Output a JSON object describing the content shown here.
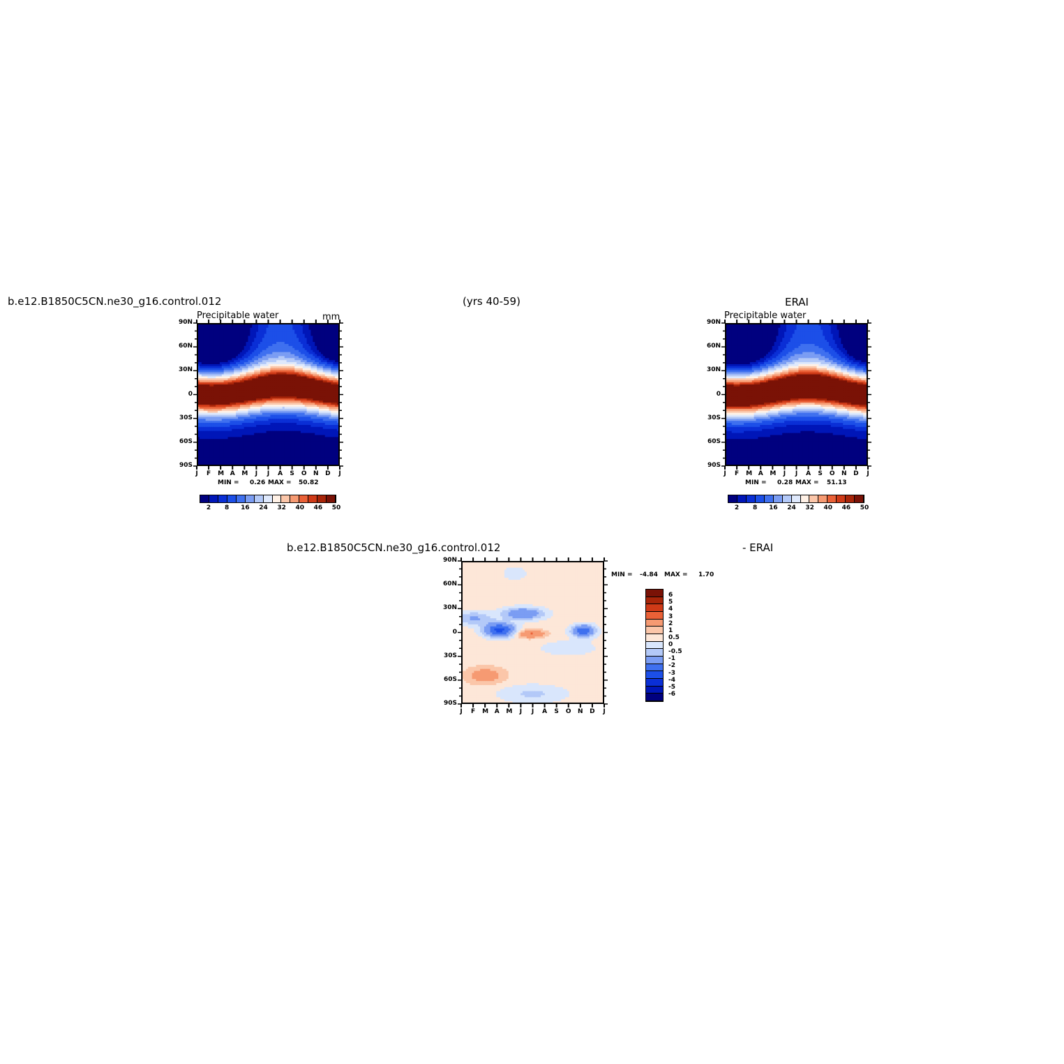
{
  "page": {
    "model_name": "b.e12.B1850C5CN.ne30_g16.control.012",
    "years": "(yrs 40-59)",
    "obs_name": "ERAI",
    "diff_title_left": "b.e12.B1850C5CN.ne30_g16.control.012",
    "diff_title_right": "- ERAI"
  },
  "colors": {
    "abs_levels": [
      "#00007f",
      "#0016b8",
      "#0a2fd6",
      "#1c4fe8",
      "#3f70ef",
      "#7b9df3",
      "#b3c9f8",
      "#dfe9fc",
      "#fff1e6",
      "#fbc6a9",
      "#f69a72",
      "#ea6137",
      "#cf3a17",
      "#a82509",
      "#7a1206"
    ],
    "diff_levels": [
      "#00007f",
      "#0016b8",
      "#0a2fd6",
      "#1c4fe8",
      "#3f70ef",
      "#7b9df3",
      "#b3c9f8",
      "#d9e6fc",
      "#fde7d8",
      "#fbc6a9",
      "#f69a72",
      "#ea6137",
      "#cf3a17",
      "#a82509",
      "#7a1206"
    ]
  },
  "chart_data": [
    {
      "type": "heatmap",
      "panel": "model",
      "title": "Precipitable water",
      "units": "mm",
      "x_ticks": [
        "J",
        "F",
        "M",
        "A",
        "M",
        "J",
        "J",
        "A",
        "S",
        "O",
        "N",
        "D",
        "J"
      ],
      "y_ticks": [
        "90N",
        "60N",
        "30N",
        "0",
        "30S",
        "60S",
        "90S"
      ],
      "y_range": [
        -90,
        90
      ],
      "min_label": "MIN =",
      "min_value": "0.26",
      "max_label": "MAX =",
      "max_value": "50.82",
      "colorbar_labels": [
        "2",
        "8",
        "16",
        "24",
        "32",
        "40",
        "46",
        "50"
      ],
      "peak_value": 52,
      "itcz_base_lat": 5,
      "itcz_amplitude": 5,
      "peak_month": 7.3
    },
    {
      "type": "heatmap",
      "panel": "obs",
      "title": "Precipitable water",
      "units": "",
      "x_ticks": [
        "J",
        "F",
        "M",
        "A",
        "M",
        "J",
        "J",
        "A",
        "S",
        "O",
        "N",
        "D",
        "J"
      ],
      "y_ticks": [
        "90N",
        "60N",
        "30N",
        "0",
        "30S",
        "60S",
        "90S"
      ],
      "y_range": [
        -90,
        90
      ],
      "min_label": "MIN =",
      "min_value": "0.28",
      "max_label": "MAX =",
      "max_value": "51.13",
      "colorbar_labels": [
        "2",
        "8",
        "16",
        "24",
        "32",
        "40",
        "46",
        "50"
      ],
      "peak_value": 54,
      "itcz_base_lat": 4,
      "itcz_amplitude": 5,
      "peak_month": 7.0
    },
    {
      "type": "heatmap",
      "panel": "difference",
      "x_ticks": [
        "J",
        "F",
        "M",
        "A",
        "M",
        "J",
        "J",
        "A",
        "S",
        "O",
        "N",
        "D",
        "J"
      ],
      "y_ticks": [
        "90N",
        "60N",
        "30N",
        "0",
        "30S",
        "60S",
        "90S"
      ],
      "y_range": [
        -90,
        90
      ],
      "min_label": "MIN =",
      "min_value": "-4.84",
      "max_label": "MAX =",
      "max_value": "1.70",
      "colorbar_labels": [
        "6",
        "5",
        "4",
        "3",
        "2",
        "1",
        "0.5",
        "0",
        "-0.5",
        "-1",
        "-2",
        "-3",
        "-4",
        "-5",
        "-6"
      ]
    }
  ]
}
